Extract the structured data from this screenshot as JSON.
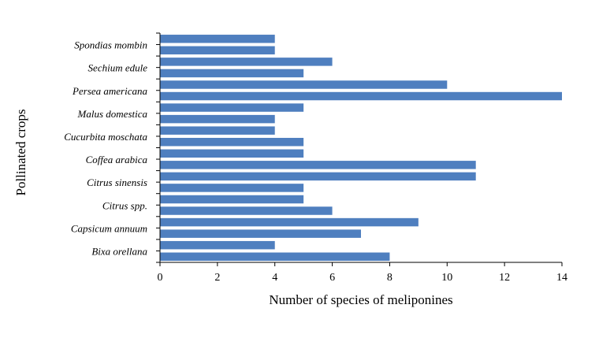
{
  "colors": {
    "bar": "#4f7fbf",
    "axis": "#000000",
    "background": "#ffffff"
  },
  "chart_data": {
    "type": "bar",
    "orientation": "horizontal",
    "xlabel": "Number of species of meliponines",
    "ylabel": "Pollinated crops",
    "xlim": [
      0,
      14
    ],
    "xticks": [
      0,
      2,
      4,
      6,
      8,
      10,
      12,
      14
    ],
    "grid": false,
    "legend": "none",
    "bars": [
      {
        "value": 4
      },
      {
        "value": 4
      },
      {
        "value": 6
      },
      {
        "value": 5
      },
      {
        "value": 10
      },
      {
        "value": 14
      },
      {
        "value": 5
      },
      {
        "value": 4
      },
      {
        "value": 4
      },
      {
        "value": 5
      },
      {
        "value": 5
      },
      {
        "value": 11
      },
      {
        "value": 11
      },
      {
        "value": 5
      },
      {
        "value": 5
      },
      {
        "value": 6
      },
      {
        "value": 9
      },
      {
        "value": 7
      },
      {
        "value": 4
      },
      {
        "value": 8
      }
    ],
    "category_labels": [
      {
        "label": "Spondias mombin",
        "slot": 1
      },
      {
        "label": "Sechium edule",
        "slot": 3
      },
      {
        "label": "Persea americana",
        "slot": 5
      },
      {
        "label": "Malus domestica",
        "slot": 7
      },
      {
        "label": "Cucurbita moschata",
        "slot": 9
      },
      {
        "label": "Coffea arabica",
        "slot": 11
      },
      {
        "label": "Citrus sinensis",
        "slot": 13
      },
      {
        "label": "Citrus spp.",
        "slot": 15
      },
      {
        "label": "Capsicum annuum",
        "slot": 17
      },
      {
        "label": "Bixa orellana",
        "slot": 19
      }
    ]
  }
}
